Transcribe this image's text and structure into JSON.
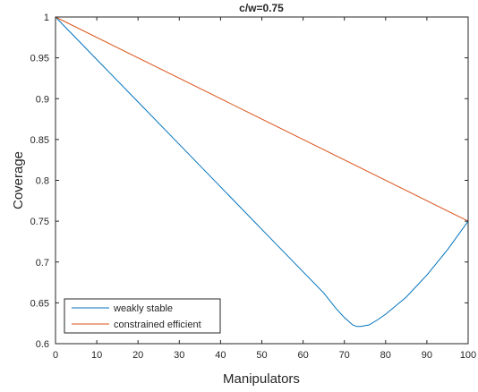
{
  "chart_data": {
    "type": "line",
    "title": "c/w=0.75",
    "xlabel": "Manipulators",
    "ylabel": "Coverage",
    "xlim": [
      0,
      100
    ],
    "ylim": [
      0.6,
      1
    ],
    "xticks": [
      0,
      10,
      20,
      30,
      40,
      50,
      60,
      70,
      80,
      90,
      100
    ],
    "xtick_labels": [
      "0",
      "10",
      "20",
      "30",
      "40",
      "50",
      "60",
      "70",
      "80",
      "90",
      "100"
    ],
    "yticks": [
      0.6,
      0.65,
      0.7,
      0.75,
      0.8,
      0.85,
      0.9,
      0.95,
      1
    ],
    "ytick_labels": [
      "0.6",
      "0.65",
      "0.7",
      "0.75",
      "0.8",
      "0.85",
      "0.9",
      "0.95",
      "1"
    ],
    "grid": false,
    "legend_position": "bottom-left",
    "series": [
      {
        "name": "weakly stable",
        "color": "#0072BD",
        "x": [
          0,
          10,
          20,
          30,
          40,
          50,
          60,
          65,
          68,
          70,
          72,
          73,
          74,
          76,
          78,
          80,
          85,
          90,
          95,
          100
        ],
        "y": [
          1.0,
          0.948,
          0.896,
          0.844,
          0.792,
          0.74,
          0.688,
          0.662,
          0.643,
          0.632,
          0.623,
          0.621,
          0.621,
          0.623,
          0.629,
          0.636,
          0.657,
          0.684,
          0.715,
          0.75
        ]
      },
      {
        "name": "constrained efficient",
        "color": "#D95319",
        "x": [
          0,
          100
        ],
        "y": [
          1.0,
          0.75
        ]
      }
    ]
  }
}
